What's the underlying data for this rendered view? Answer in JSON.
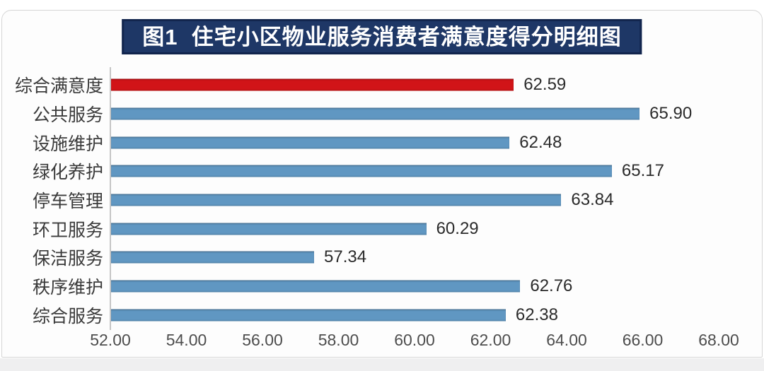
{
  "title": {
    "text": "图1  住宅小区物业服务消费者满意度得分明细图",
    "bg_color": "#1e3766",
    "border_color": "#12254d",
    "text_color": "#ffffff"
  },
  "chart_data": {
    "type": "bar",
    "orientation": "horizontal",
    "title": "图1  住宅小区物业服务消费者满意度得分明细图",
    "categories": [
      "综合满意度",
      "公共服务",
      "设施维护",
      "绿化养护",
      "停车管理",
      "环卫服务",
      "保洁服务",
      "秩序维护",
      "综合服务"
    ],
    "values": [
      62.59,
      65.9,
      62.48,
      65.17,
      63.84,
      60.29,
      57.34,
      62.76,
      62.38
    ],
    "value_labels": [
      "62.59",
      "65.90",
      "62.48",
      "65.17",
      "63.84",
      "60.29",
      "57.34",
      "62.76",
      "62.38"
    ],
    "xlim": [
      52,
      68
    ],
    "x_ticks": [
      "52.00",
      "54.00",
      "56.00",
      "58.00",
      "60.00",
      "62.00",
      "64.00",
      "66.00",
      "68.00"
    ],
    "bar_color": "#6097c2",
    "highlight_color": "#d11418",
    "highlight_index": 0,
    "grid": false,
    "legend": false,
    "data_labels": true
  }
}
